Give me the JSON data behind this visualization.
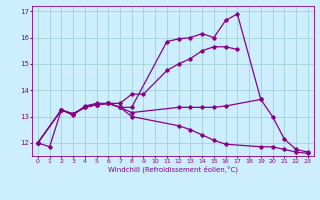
{
  "xlabel": "Windchill (Refroidissement éolien,°C)",
  "background_color": "#cceeff",
  "line_color": "#880088",
  "grid_color": "#99cccc",
  "xlim": [
    -0.5,
    23.5
  ],
  "ylim": [
    11.5,
    17.2
  ],
  "yticks": [
    12,
    13,
    14,
    15,
    16,
    17
  ],
  "xticks": [
    0,
    1,
    2,
    3,
    4,
    5,
    6,
    7,
    8,
    9,
    10,
    11,
    12,
    13,
    14,
    15,
    16,
    17,
    18,
    19,
    20,
    21,
    22,
    23
  ],
  "series": [
    {
      "x": [
        0,
        1,
        2,
        3,
        4,
        5,
        6,
        7,
        8,
        11,
        12,
        13,
        14,
        15,
        16,
        17,
        19,
        20,
        21,
        22,
        23
      ],
      "y": [
        12.0,
        11.85,
        13.25,
        13.05,
        13.4,
        13.5,
        13.5,
        13.35,
        13.35,
        15.85,
        15.95,
        16.0,
        16.15,
        16.0,
        16.65,
        16.9,
        13.65,
        13.0,
        12.15,
        11.75,
        11.65
      ]
    },
    {
      "x": [
        0,
        2,
        3,
        4,
        5,
        6,
        7,
        8,
        9,
        11,
        12,
        13,
        14,
        15,
        16,
        17
      ],
      "y": [
        12.0,
        13.25,
        13.1,
        13.35,
        13.45,
        13.5,
        13.5,
        13.85,
        13.85,
        14.75,
        15.0,
        15.2,
        15.5,
        15.65,
        15.65,
        15.55
      ]
    },
    {
      "x": [
        0,
        2,
        3,
        4,
        5,
        6,
        7,
        8,
        12,
        13,
        14,
        15,
        16,
        19
      ],
      "y": [
        12.0,
        13.25,
        13.1,
        13.35,
        13.45,
        13.5,
        13.35,
        13.15,
        13.35,
        13.35,
        13.35,
        13.35,
        13.4,
        13.65
      ]
    },
    {
      "x": [
        0,
        2,
        3,
        4,
        5,
        6,
        7,
        8,
        12,
        13,
        14,
        15,
        16,
        19,
        20,
        21,
        22,
        23
      ],
      "y": [
        12.0,
        13.25,
        13.1,
        13.35,
        13.45,
        13.5,
        13.35,
        13.0,
        12.65,
        12.5,
        12.3,
        12.1,
        11.95,
        11.85,
        11.85,
        11.75,
        11.65,
        11.6
      ]
    }
  ]
}
